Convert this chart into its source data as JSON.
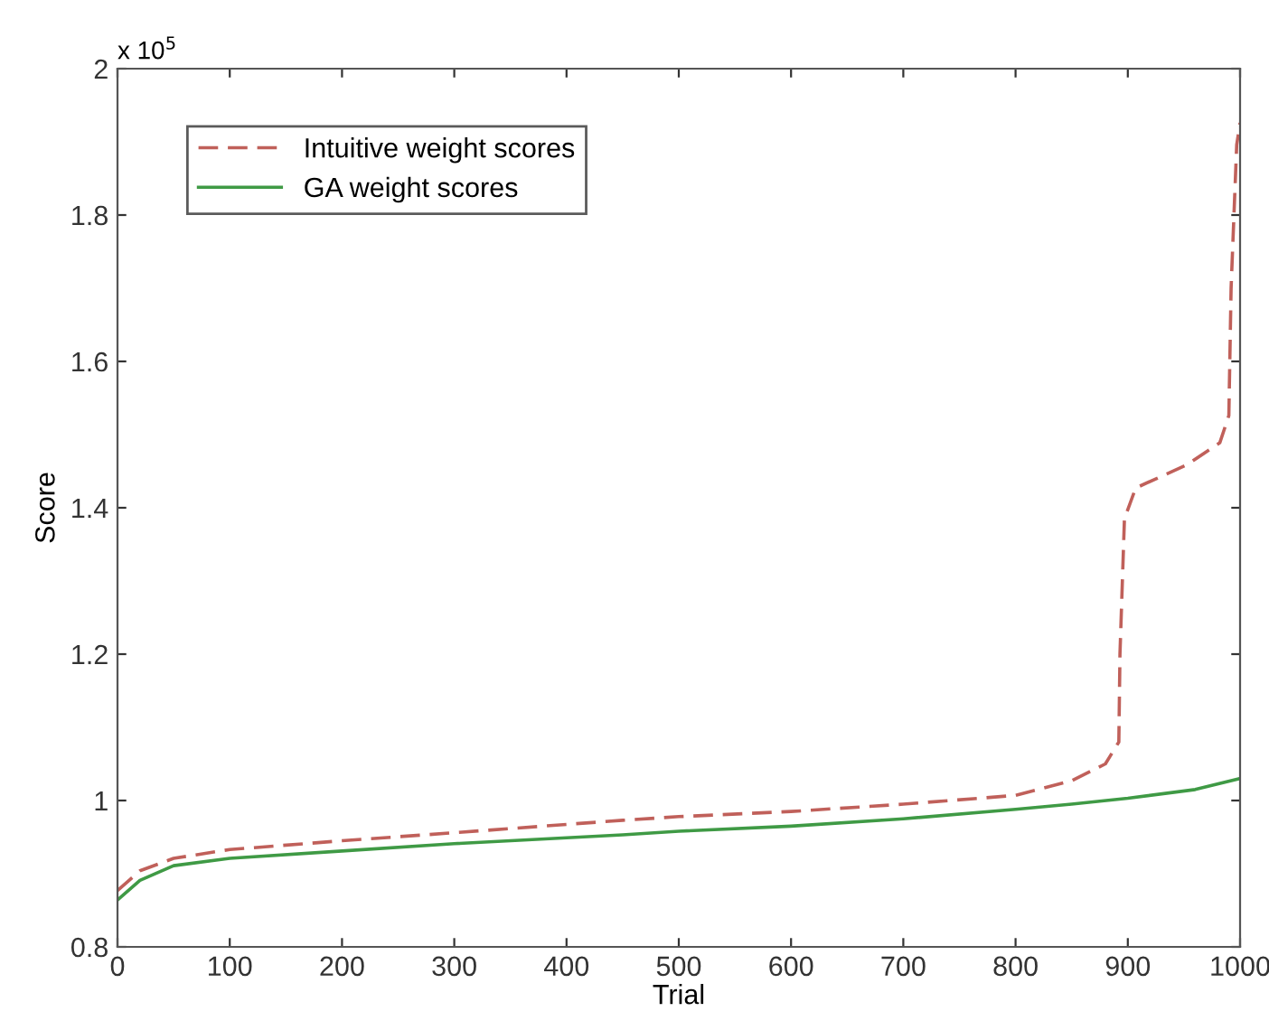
{
  "chart_data": {
    "type": "line",
    "xlabel": "Trial",
    "ylabel": "Score",
    "annotations": [
      "x 10$^{5}$"
    ],
    "xlim": [
      0,
      1000
    ],
    "xticks": [
      0,
      100,
      200,
      300,
      400,
      500,
      600,
      700,
      800,
      900,
      1000
    ],
    "ylim": [
      0.8,
      2
    ],
    "yticks": [
      0.8,
      1,
      1.2,
      1.4,
      1.6,
      1.8,
      2
    ],
    "grid": false,
    "legend": "top left",
    "marker": "none",
    "series": [
      {
        "name": "Intuitive weight scores",
        "color": "#c0605a",
        "line_style": "dashed",
        "x": [
          0,
          20,
          50,
          100,
          200,
          300,
          450,
          500,
          600,
          700,
          800,
          850,
          880,
          892,
          893,
          897,
          907,
          953,
          982,
          990,
          992,
          997,
          1000
        ],
        "values": [
          0.877,
          0.904,
          0.921,
          0.933,
          0.945,
          0.956,
          0.973,
          0.978,
          0.985,
          0.995,
          1.007,
          1.027,
          1.05,
          1.08,
          1.2,
          1.385,
          1.427,
          1.459,
          1.489,
          1.526,
          1.7,
          1.896,
          1.926
        ]
      },
      {
        "name": "GA weight scores",
        "color": "#3f9a45",
        "line_style": "solid",
        "x": [
          0,
          20,
          50,
          100,
          200,
          300,
          450,
          500,
          600,
          700,
          800,
          850,
          900,
          960,
          1000
        ],
        "values": [
          0.864,
          0.891,
          0.911,
          0.921,
          0.931,
          0.941,
          0.953,
          0.958,
          0.965,
          0.975,
          0.988,
          0.995,
          1.003,
          1.015,
          1.03
        ]
      }
    ]
  }
}
